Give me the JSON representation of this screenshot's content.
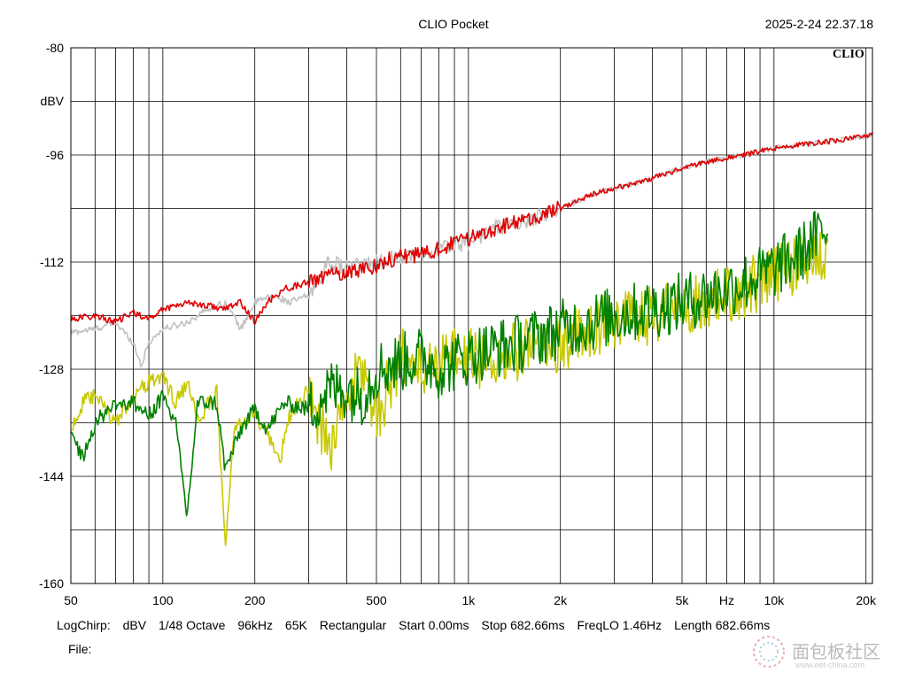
{
  "header": {
    "title": "CLIO Pocket",
    "timestamp": "2025-2-24 22.37.18",
    "logo": "CLIO"
  },
  "watermark": {
    "text": "面包板社区",
    "sub": "www.eet-china.com",
    "logo_icon": "dot-ring-logo-icon"
  },
  "chart_data": {
    "type": "line",
    "title": "",
    "xlabel": "Hz",
    "ylabel": "dBV",
    "x_scale": "log",
    "xlim": [
      50,
      21000
    ],
    "ylim": [
      -160,
      -80
    ],
    "y_ticks": [
      -80,
      -96,
      -112,
      -128,
      -144,
      -160
    ],
    "y_tick_labels": [
      "-80",
      "-96",
      "-112",
      "-128",
      "-144",
      "-160"
    ],
    "x_tick_labels": [
      {
        "value": 50,
        "label": "50"
      },
      {
        "value": 100,
        "label": "100"
      },
      {
        "value": 200,
        "label": "200"
      },
      {
        "value": 500,
        "label": "500"
      },
      {
        "value": 1000,
        "label": "1k"
      },
      {
        "value": 2000,
        "label": "2k"
      },
      {
        "value": 5000,
        "label": "5k"
      },
      {
        "value": 10000,
        "label": "10k"
      },
      {
        "value": 20000,
        "label": "20k"
      }
    ],
    "grid": true,
    "series": [
      {
        "color": "#c0c0c0",
        "points": [
          [
            50,
            -122.5
          ],
          [
            60,
            -122
          ],
          [
            70,
            -121
          ],
          [
            80,
            -124
          ],
          [
            85,
            -127.5
          ],
          [
            90,
            -124
          ],
          [
            100,
            -122
          ],
          [
            120,
            -121
          ],
          [
            140,
            -119
          ],
          [
            160,
            -118
          ],
          [
            180,
            -122
          ],
          [
            200,
            -118
          ],
          [
            230,
            -117
          ],
          [
            260,
            -118
          ],
          [
            300,
            -117
          ],
          [
            350,
            -112
          ],
          [
            400,
            -113
          ],
          [
            500,
            -112
          ],
          [
            600,
            -111
          ],
          [
            700,
            -111
          ],
          [
            800,
            -110
          ],
          [
            1000,
            -109
          ],
          [
            1200,
            -107
          ],
          [
            1500,
            -106
          ],
          [
            2000,
            -104
          ],
          [
            2500,
            -102
          ],
          [
            3000,
            -101
          ],
          [
            4000,
            -99.5
          ],
          [
            5000,
            -98
          ],
          [
            6000,
            -97
          ],
          [
            8000,
            -96
          ],
          [
            10000,
            -95
          ],
          [
            12000,
            -94.5
          ],
          [
            15000,
            -94
          ],
          [
            18000,
            -93.5
          ],
          [
            21000,
            -93
          ]
        ]
      },
      {
        "color": "#e00000",
        "points": [
          [
            50,
            -120.5
          ],
          [
            60,
            -120
          ],
          [
            70,
            -121
          ],
          [
            80,
            -119.5
          ],
          [
            90,
            -120.5
          ],
          [
            100,
            -119
          ],
          [
            120,
            -118
          ],
          [
            140,
            -118.5
          ],
          [
            160,
            -119
          ],
          [
            180,
            -118
          ],
          [
            200,
            -121
          ],
          [
            220,
            -118
          ],
          [
            250,
            -116
          ],
          [
            300,
            -115
          ],
          [
            350,
            -114
          ],
          [
            400,
            -113.5
          ],
          [
            500,
            -112.5
          ],
          [
            600,
            -111
          ],
          [
            700,
            -111
          ],
          [
            800,
            -110
          ],
          [
            1000,
            -108.5
          ],
          [
            1200,
            -107
          ],
          [
            1500,
            -106
          ],
          [
            2000,
            -104
          ],
          [
            2500,
            -102
          ],
          [
            3000,
            -101
          ],
          [
            4000,
            -99.5
          ],
          [
            5000,
            -98
          ],
          [
            6000,
            -97
          ],
          [
            8000,
            -96
          ],
          [
            10000,
            -95
          ],
          [
            12000,
            -94.5
          ],
          [
            15000,
            -94
          ],
          [
            18000,
            -93.5
          ],
          [
            21000,
            -93
          ]
        ]
      },
      {
        "color": "#c8c800",
        "points": [
          [
            50,
            -137
          ],
          [
            55,
            -133
          ],
          [
            60,
            -132
          ],
          [
            70,
            -136
          ],
          [
            80,
            -132
          ],
          [
            90,
            -130
          ],
          [
            100,
            -129
          ],
          [
            110,
            -133
          ],
          [
            120,
            -130
          ],
          [
            130,
            -136
          ],
          [
            150,
            -131
          ],
          [
            160,
            -155
          ],
          [
            170,
            -138
          ],
          [
            180,
            -136
          ],
          [
            200,
            -135
          ],
          [
            220,
            -138
          ],
          [
            240,
            -142
          ],
          [
            260,
            -135
          ],
          [
            300,
            -131
          ],
          [
            350,
            -140
          ],
          [
            400,
            -132
          ],
          [
            450,
            -128
          ],
          [
            500,
            -135
          ],
          [
            600,
            -126
          ],
          [
            700,
            -128
          ],
          [
            800,
            -127
          ],
          [
            1000,
            -126
          ],
          [
            1200,
            -127
          ],
          [
            1500,
            -125
          ],
          [
            2000,
            -124
          ],
          [
            2500,
            -122
          ],
          [
            3000,
            -121
          ],
          [
            4000,
            -120
          ],
          [
            5000,
            -118.5
          ],
          [
            6000,
            -118
          ],
          [
            8000,
            -116
          ],
          [
            10000,
            -114
          ],
          [
            12000,
            -112
          ],
          [
            14000,
            -111
          ],
          [
            15000,
            -110.5
          ]
        ]
      },
      {
        "color": "#008000",
        "points": [
          [
            50,
            -138
          ],
          [
            55,
            -141
          ],
          [
            60,
            -136
          ],
          [
            70,
            -133
          ],
          [
            80,
            -133
          ],
          [
            90,
            -135
          ],
          [
            100,
            -132
          ],
          [
            110,
            -136
          ],
          [
            120,
            -150
          ],
          [
            130,
            -133
          ],
          [
            150,
            -133
          ],
          [
            160,
            -143
          ],
          [
            170,
            -140
          ],
          [
            180,
            -137
          ],
          [
            200,
            -134
          ],
          [
            220,
            -137
          ],
          [
            250,
            -133
          ],
          [
            300,
            -134
          ],
          [
            350,
            -131
          ],
          [
            400,
            -131
          ],
          [
            450,
            -132
          ],
          [
            500,
            -128
          ],
          [
            600,
            -127
          ],
          [
            700,
            -126
          ],
          [
            800,
            -128
          ],
          [
            1000,
            -126
          ],
          [
            1200,
            -125
          ],
          [
            1500,
            -124
          ],
          [
            2000,
            -122
          ],
          [
            2500,
            -121
          ],
          [
            3000,
            -120
          ],
          [
            4000,
            -119
          ],
          [
            5000,
            -118
          ],
          [
            6000,
            -117
          ],
          [
            8000,
            -115
          ],
          [
            10000,
            -113
          ],
          [
            12000,
            -111
          ],
          [
            14000,
            -108
          ],
          [
            15000,
            -107
          ]
        ]
      }
    ]
  },
  "settings": {
    "mode": "LogChirp:",
    "unit": "dBV",
    "smoothing": "1/48 Octave",
    "sample_rate": "96kHz",
    "size": "65K",
    "window": "Rectangular",
    "start": "Start 0.00ms",
    "stop": "Stop 682.66ms",
    "freq_lo": "FreqLO 1.46Hz",
    "length": "Length 682.66ms"
  },
  "file": {
    "label": "File:"
  }
}
